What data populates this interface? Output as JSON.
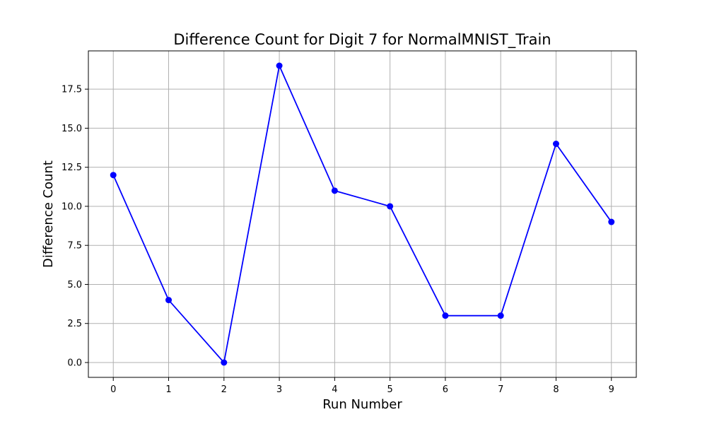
{
  "chart_data": {
    "type": "line",
    "title": "Difference Count for Digit 7 for NormalMNIST_Train",
    "xlabel": "Run Number",
    "ylabel": "Difference Count",
    "x": [
      0,
      1,
      2,
      3,
      4,
      5,
      6,
      7,
      8,
      9
    ],
    "series": [
      {
        "values": [
          12,
          4,
          0,
          19,
          11,
          10,
          3,
          3,
          14,
          9
        ],
        "color": "#0000ff",
        "marker": "circle"
      }
    ],
    "xlim": [
      -0.45,
      9.45
    ],
    "ylim": [
      -0.95,
      19.95
    ],
    "xticks": [
      0,
      1,
      2,
      3,
      4,
      5,
      6,
      7,
      8,
      9
    ],
    "yticks": [
      0.0,
      2.5,
      5.0,
      7.5,
      10.0,
      12.5,
      15.0,
      17.5
    ],
    "ytick_labels": [
      "0.0",
      "2.5",
      "5.0",
      "7.5",
      "10.0",
      "12.5",
      "15.0",
      "17.5"
    ],
    "grid": true,
    "grid_color": "#b0b0b0",
    "legend": false
  }
}
